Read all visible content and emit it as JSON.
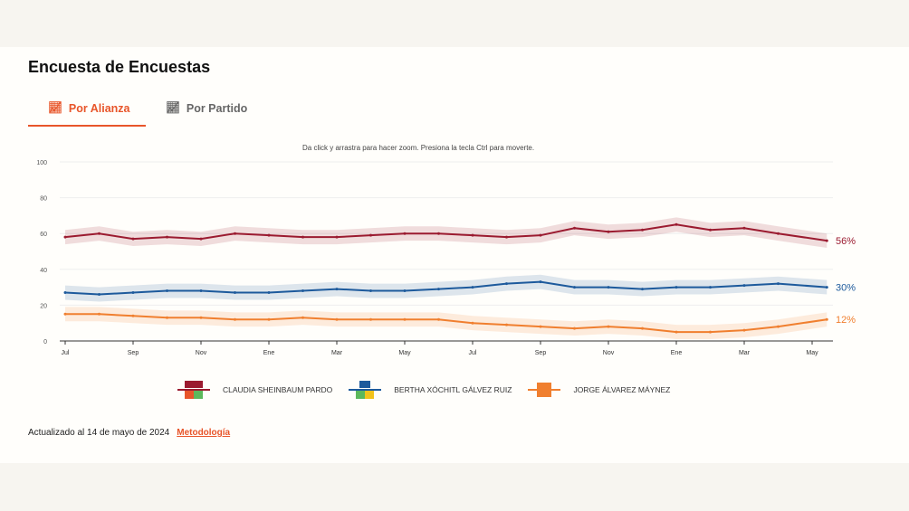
{
  "title": "Encuesta de Encuestas",
  "tabs": [
    {
      "label": "Por Alianza",
      "active": true,
      "icon": "line-chart-icon"
    },
    {
      "label": "Por Partido",
      "active": false,
      "icon": "line-chart-icon"
    }
  ],
  "hint": "Da click y arrastra para hacer zoom. Presiona la tecla Ctrl para moverte.",
  "footer": {
    "updated": "Actualizado al 14 de mayo de 2024",
    "link": "Metodología"
  },
  "chart_data": {
    "type": "line",
    "ylim": [
      0,
      100
    ],
    "yticks": [
      0,
      20,
      40,
      60,
      80,
      100
    ],
    "xticks": [
      {
        "label": "Jul",
        "date": "2022-07"
      },
      {
        "label": "Sep",
        "date": "2022-09"
      },
      {
        "label": "Nov",
        "date": "2022-11"
      },
      {
        "label": "Ene",
        "date": "2023-01"
      },
      {
        "label": "Mar",
        "date": "2023-03"
      },
      {
        "label": "May",
        "date": "2023-05"
      },
      {
        "label": "Jul",
        "date": "2023-07"
      },
      {
        "label": "Sep",
        "date": "2023-09"
      },
      {
        "label": "Nov",
        "date": "2023-11"
      },
      {
        "label": "Ene",
        "date": "2024-01"
      },
      {
        "label": "Mar",
        "date": "2024-03"
      },
      {
        "label": "May",
        "date": "2024-05"
      }
    ],
    "x": [
      "2022-07",
      "2022-08",
      "2022-09",
      "2022-10",
      "2022-11",
      "2022-12",
      "2023-01",
      "2023-02",
      "2023-03",
      "2023-04",
      "2023-05",
      "2023-06",
      "2023-07",
      "2023-08",
      "2023-09",
      "2023-10",
      "2023-11",
      "2023-12",
      "2024-01",
      "2024-02",
      "2024-03",
      "2024-04",
      "2024-05-14"
    ],
    "series": [
      {
        "name": "CLAUDIA SHEINBAUM PARDO",
        "color": "#9b1b30",
        "end_label": "56%",
        "values": [
          58,
          60,
          57,
          58,
          57,
          60,
          59,
          58,
          58,
          59,
          60,
          60,
          59,
          58,
          59,
          63,
          61,
          62,
          65,
          62,
          63,
          60,
          56
        ]
      },
      {
        "name": "BERTHA XÓCHITL GÁLVEZ RUIZ",
        "color": "#1d5a9c",
        "end_label": "30%",
        "values": [
          27,
          26,
          27,
          28,
          28,
          27,
          27,
          28,
          29,
          28,
          28,
          29,
          30,
          32,
          33,
          30,
          30,
          29,
          30,
          30,
          31,
          32,
          30
        ]
      },
      {
        "name": "JORGE ÁLVAREZ MÁYNEZ",
        "color": "#f07f2f",
        "end_label": "12%",
        "values": [
          15,
          15,
          14,
          13,
          13,
          12,
          12,
          13,
          12,
          12,
          12,
          12,
          10,
          9,
          8,
          7,
          8,
          7,
          5,
          5,
          6,
          8,
          12
        ]
      }
    ]
  }
}
